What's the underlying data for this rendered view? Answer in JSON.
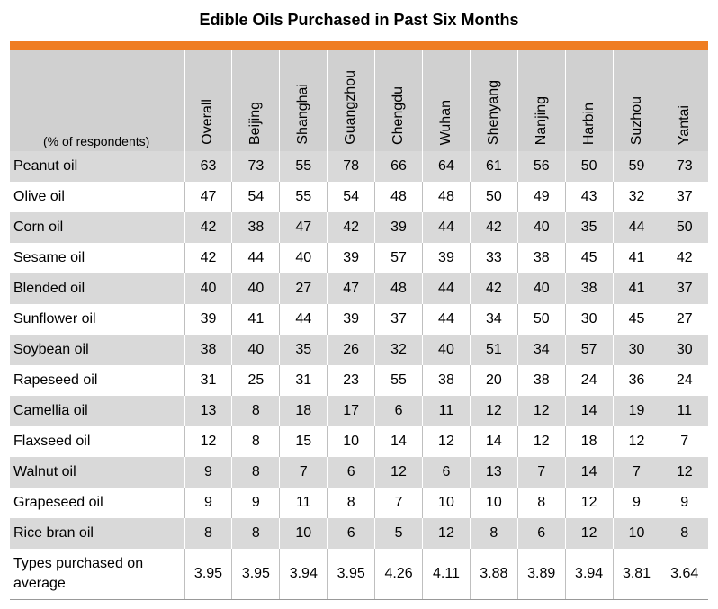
{
  "title": "Edible Oils Purchased in Past Six Months",
  "colors": {
    "accent": "#ef7d22",
    "header_bg": "#d0d0d0",
    "stripe": "#d9d9d9"
  },
  "chart_data": {
    "type": "table",
    "title": "Edible Oils Purchased in Past Six Months",
    "unit_label": "(% of respondents)",
    "columns": [
      "Overall",
      "Beijing",
      "Shanghai",
      "Guangzhou",
      "Chengdu",
      "Wuhan",
      "Shenyang",
      "Nanjing",
      "Harbin",
      "Suzhou",
      "Yantai"
    ],
    "rows": [
      {
        "label": "Peanut oil",
        "values": [
          "63",
          "73",
          "55",
          "78",
          "66",
          "64",
          "61",
          "56",
          "50",
          "59",
          "73"
        ]
      },
      {
        "label": "Olive oil",
        "values": [
          "47",
          "54",
          "55",
          "54",
          "48",
          "48",
          "50",
          "49",
          "43",
          "32",
          "37"
        ]
      },
      {
        "label": "Corn oil",
        "values": [
          "42",
          "38",
          "47",
          "42",
          "39",
          "44",
          "42",
          "40",
          "35",
          "44",
          "50"
        ]
      },
      {
        "label": "Sesame oil",
        "values": [
          "42",
          "44",
          "40",
          "39",
          "57",
          "39",
          "33",
          "38",
          "45",
          "41",
          "42"
        ]
      },
      {
        "label": "Blended oil",
        "values": [
          "40",
          "40",
          "27",
          "47",
          "48",
          "44",
          "42",
          "40",
          "38",
          "41",
          "37"
        ]
      },
      {
        "label": "Sunflower oil",
        "values": [
          "39",
          "41",
          "44",
          "39",
          "37",
          "44",
          "34",
          "50",
          "30",
          "45",
          "27"
        ]
      },
      {
        "label": "Soybean oil",
        "values": [
          "38",
          "40",
          "35",
          "26",
          "32",
          "40",
          "51",
          "34",
          "57",
          "30",
          "30"
        ]
      },
      {
        "label": "Rapeseed oil",
        "values": [
          "31",
          "25",
          "31",
          "23",
          "55",
          "38",
          "20",
          "38",
          "24",
          "36",
          "24"
        ]
      },
      {
        "label": "Camellia oil",
        "values": [
          "13",
          "8",
          "18",
          "17",
          "6",
          "11",
          "12",
          "12",
          "14",
          "19",
          "11"
        ]
      },
      {
        "label": "Flaxseed oil",
        "values": [
          "12",
          "8",
          "15",
          "10",
          "14",
          "12",
          "14",
          "12",
          "18",
          "12",
          "7"
        ]
      },
      {
        "label": "Walnut oil",
        "values": [
          "9",
          "8",
          "7",
          "6",
          "12",
          "6",
          "13",
          "7",
          "14",
          "7",
          "12"
        ]
      },
      {
        "label": "Grapeseed oil",
        "values": [
          "9",
          "9",
          "11",
          "8",
          "7",
          "10",
          "10",
          "8",
          "12",
          "9",
          "9"
        ]
      },
      {
        "label": "Rice bran oil",
        "values": [
          "8",
          "8",
          "10",
          "6",
          "5",
          "12",
          "8",
          "6",
          "12",
          "10",
          "8"
        ]
      },
      {
        "label": "Types purchased on average",
        "values": [
          "3.95",
          "3.95",
          "3.94",
          "3.95",
          "4.26",
          "4.11",
          "3.88",
          "3.89",
          "3.94",
          "3.81",
          "3.64"
        ]
      }
    ]
  }
}
